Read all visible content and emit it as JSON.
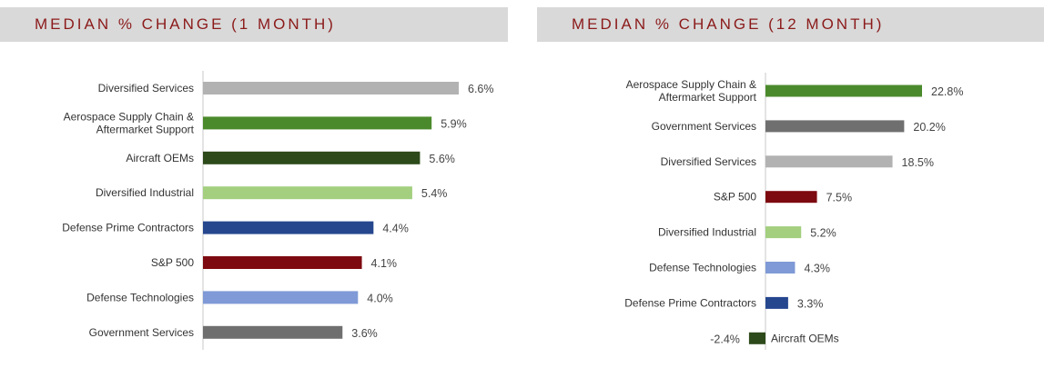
{
  "chart_data": [
    {
      "type": "bar",
      "orientation": "horizontal",
      "title": "MEDIAN % CHANGE (1 MONTH)",
      "categories": [
        "Diversified Services",
        "Aerospace Supply Chain &\nAftermarket Support",
        "Aircraft OEMs",
        "Diversified Industrial",
        "Defense Prime Contractors",
        "S&P 500",
        "Defense Technologies",
        "Government Services"
      ],
      "values": [
        6.6,
        5.9,
        5.6,
        5.4,
        4.4,
        4.1,
        4.0,
        3.6
      ],
      "value_labels": [
        "6.6%",
        "5.9%",
        "5.6%",
        "5.4%",
        "4.4%",
        "4.1%",
        "4.0%",
        "3.6%"
      ],
      "colors": [
        "#b2b2b2",
        "#4b8a2c",
        "#2d4a1a",
        "#a3cf7f",
        "#26478e",
        "#7d0a10",
        "#7f9ad6",
        "#6f6f6f"
      ],
      "xlim": [
        0,
        7
      ]
    },
    {
      "type": "bar",
      "orientation": "horizontal",
      "title": "MEDIAN % CHANGE (12 MONTH)",
      "categories": [
        "Aerospace Supply Chain &\nAftermarket Support",
        "Government Services",
        "Diversified Services",
        "S&P 500",
        "Diversified Industrial",
        "Defense Technologies",
        "Defense Prime Contractors",
        "Aircraft OEMs"
      ],
      "values": [
        22.8,
        20.2,
        18.5,
        7.5,
        5.2,
        4.3,
        3.3,
        -2.4
      ],
      "value_labels": [
        "22.8%",
        "20.2%",
        "18.5%",
        "7.5%",
        "5.2%",
        "4.3%",
        "3.3%",
        "-2.4%"
      ],
      "colors": [
        "#4b8a2c",
        "#6f6f6f",
        "#b2b2b2",
        "#7d0a10",
        "#a3cf7f",
        "#7f9ad6",
        "#26478e",
        "#2d4a1a"
      ],
      "xlim": [
        -3,
        25
      ]
    }
  ]
}
